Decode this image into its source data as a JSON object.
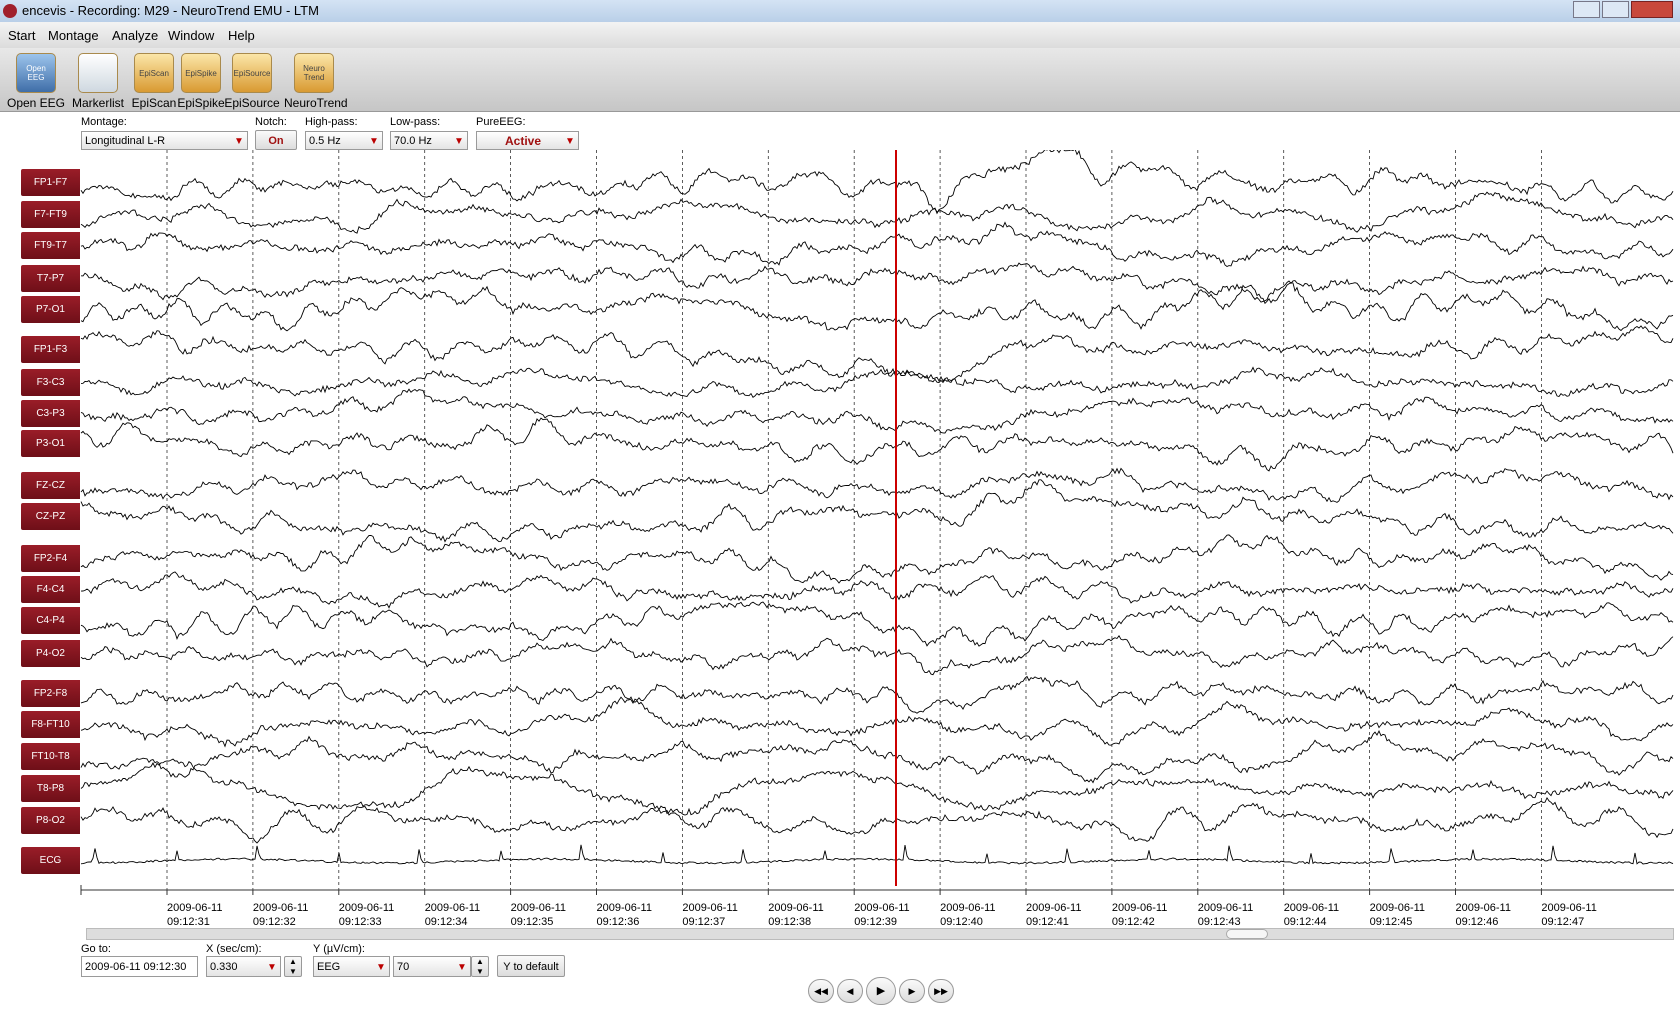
{
  "window": {
    "title": "encevis - Recording: M29 - NeuroTrend EMU - LTM"
  },
  "menu": [
    "Start",
    "Montage",
    "Analyze",
    "Window",
    "Help"
  ],
  "toolbar": [
    {
      "label": "Open EEG",
      "icon": "Open EEG"
    },
    {
      "label": "Markerlist"
    },
    {
      "label": "EpiScan",
      "icon": "EpiScan"
    },
    {
      "label": "EpiSpike",
      "icon": "EpiSpike"
    },
    {
      "label": "EpiSource",
      "icon": "EpiSource"
    },
    {
      "label": "NeuroTrend",
      "icon": "Neuro Trend"
    }
  ],
  "controls": {
    "montage": {
      "label": "Montage:",
      "value": "Longitudinal L-R"
    },
    "notch": {
      "label": "Notch:",
      "value": "On"
    },
    "highpass": {
      "label": "High-pass:",
      "value": "0.5 Hz"
    },
    "lowpass": {
      "label": "Low-pass:",
      "value": "70.0 Hz"
    },
    "pureeeg": {
      "label": "PureEEG:",
      "value": "Active"
    }
  },
  "channels": [
    "FP1-F7",
    "F7-FT9",
    "FT9-T7",
    "T7-P7",
    "P7-O1",
    "FP1-F3",
    "F3-C3",
    "C3-P3",
    "P3-O1",
    "FZ-CZ",
    "CZ-PZ",
    "FP2-F4",
    "F4-C4",
    "C4-P4",
    "P4-O2",
    "FP2-F8",
    "F8-FT10",
    "FT10-T8",
    "T8-P8",
    "P8-O2",
    "ECG"
  ],
  "time_axis": [
    {
      "date": "2009-06-11",
      "time": "09:12:31"
    },
    {
      "date": "2009-06-11",
      "time": "09:12:32"
    },
    {
      "date": "2009-06-11",
      "time": "09:12:33"
    },
    {
      "date": "2009-06-11",
      "time": "09:12:34"
    },
    {
      "date": "2009-06-11",
      "time": "09:12:35"
    },
    {
      "date": "2009-06-11",
      "time": "09:12:36"
    },
    {
      "date": "2009-06-11",
      "time": "09:12:37"
    },
    {
      "date": "2009-06-11",
      "time": "09:12:38"
    },
    {
      "date": "2009-06-11",
      "time": "09:12:39"
    },
    {
      "date": "2009-06-11",
      "time": "09:12:40"
    },
    {
      "date": "2009-06-11",
      "time": "09:12:41"
    },
    {
      "date": "2009-06-11",
      "time": "09:12:42"
    },
    {
      "date": "2009-06-11",
      "time": "09:12:43"
    },
    {
      "date": "2009-06-11",
      "time": "09:12:44"
    },
    {
      "date": "2009-06-11",
      "time": "09:12:45"
    },
    {
      "date": "2009-06-11",
      "time": "09:12:46"
    },
    {
      "date": "2009-06-11",
      "time": "09:12:47"
    }
  ],
  "bottom": {
    "goto": {
      "label": "Go to:",
      "value": "2009-06-11 09:12:30"
    },
    "x": {
      "label": "X (sec/cm):",
      "value": "0.330"
    },
    "y": {
      "label": "Y (µV/cm):",
      "type": "EEG",
      "value": "70"
    },
    "ydefault": "Y to default"
  }
}
